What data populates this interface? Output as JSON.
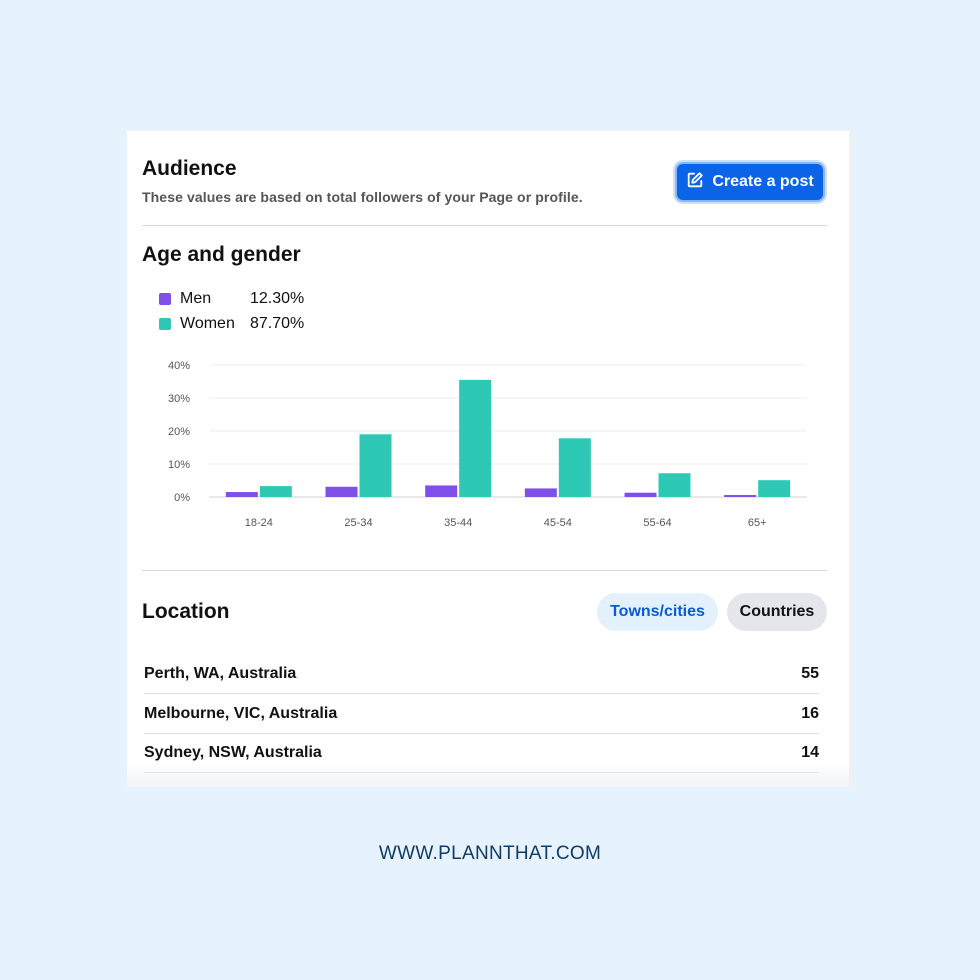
{
  "audience": {
    "title": "Audience",
    "subtitle": "These values are based on total followers of your Page or profile.",
    "create_post_label": "Create a post"
  },
  "age_gender": {
    "title": "Age and gender",
    "legend": [
      {
        "name": "Men",
        "value": "12.30%",
        "color": "#7f4fe8"
      },
      {
        "name": "Women",
        "value": "87.70%",
        "color": "#2ec9b5"
      }
    ]
  },
  "chart_data": {
    "type": "bar",
    "categories": [
      "18-24",
      "25-34",
      "35-44",
      "45-54",
      "55-64",
      "65+"
    ],
    "series": [
      {
        "name": "Men",
        "values": [
          1.5,
          3.1,
          3.5,
          2.6,
          1.3,
          0.6
        ],
        "color": "#7f4fe8"
      },
      {
        "name": "Women",
        "values": [
          3.3,
          19.0,
          35.5,
          17.8,
          7.2,
          5.1
        ],
        "color": "#2ec9b5"
      }
    ],
    "yticks": [
      "0%",
      "10%",
      "20%",
      "30%",
      "40%"
    ],
    "ylim": [
      0,
      40
    ],
    "grid": true
  },
  "location": {
    "title": "Location",
    "tabs": [
      {
        "label": "Towns/cities",
        "active": true
      },
      {
        "label": "Countries",
        "active": false
      }
    ],
    "rows": [
      {
        "place": "Perth, WA, Australia",
        "count": "55"
      },
      {
        "place": "Melbourne, VIC, Australia",
        "count": "16"
      },
      {
        "place": "Sydney, NSW, Australia",
        "count": "14"
      }
    ]
  },
  "footer": {
    "url": "WWW.PLANNTHAT.COM"
  }
}
